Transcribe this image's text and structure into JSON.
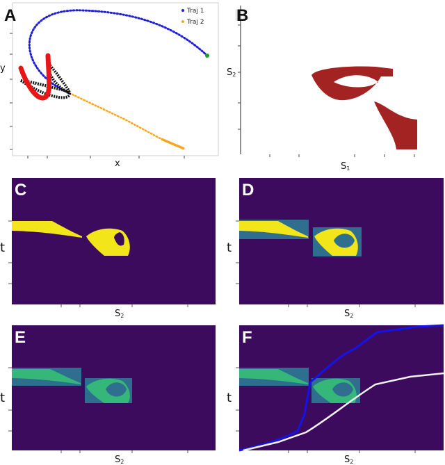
{
  "panels": {
    "a": {
      "label": "A",
      "xlabel": "x",
      "ylabel": "y",
      "legend": [
        {
          "name": "Traj 1",
          "color": "#1f1fd6"
        },
        {
          "name": "Traj 2",
          "color": "#f5a623"
        }
      ]
    },
    "b": {
      "label": "B",
      "xlabel": "S",
      "xsub": "1",
      "ylabel": "S",
      "ysub": "2",
      "color": "#a32222"
    },
    "c": {
      "label": "C",
      "xlabel": "S",
      "xsub": "2",
      "ylabel": "t"
    },
    "d": {
      "label": "D",
      "xlabel": "S",
      "xsub": "2",
      "ylabel": "t"
    },
    "e": {
      "label": "E",
      "xlabel": "S",
      "xsub": "2",
      "ylabel": "t"
    },
    "f": {
      "label": "F",
      "xlabel": "S",
      "xsub": "2",
      "ylabel": "t"
    }
  },
  "colors": {
    "background": "#3d0b5e",
    "yellow": "#f2e51a",
    "teal": "#2f6e8e",
    "green": "#35b779",
    "curve_blue": "#1414e6",
    "curve_white": "#f2f2f2",
    "red": "#e81717",
    "black": "#111111"
  }
}
